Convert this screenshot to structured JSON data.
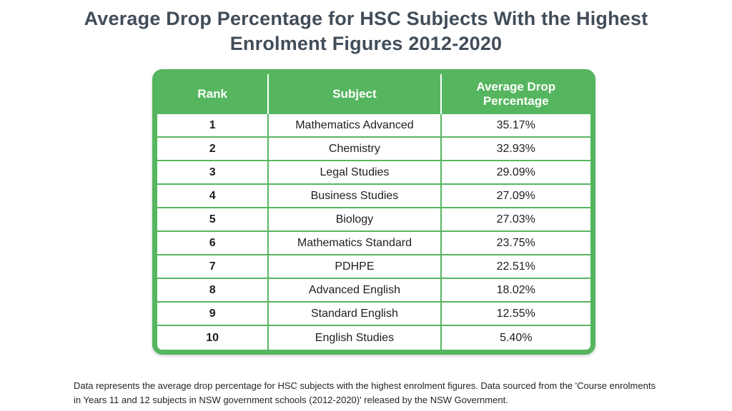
{
  "title": {
    "line1": "Average Drop Percentage for HSC Subjects With the Highest",
    "line2": "Enrolment Figures 2012-2020"
  },
  "chart_data": {
    "type": "table",
    "title": "Average Drop Percentage for HSC Subjects With the Highest Enrolment Figures 2012-2020",
    "columns": [
      "Rank",
      "Subject",
      "Average Drop Percentage"
    ],
    "rows": [
      {
        "rank": "1",
        "subject": "Mathematics Advanced",
        "drop": "35.17%"
      },
      {
        "rank": "2",
        "subject": "Chemistry",
        "drop": "32.93%"
      },
      {
        "rank": "3",
        "subject": "Legal Studies",
        "drop": "29.09%"
      },
      {
        "rank": "4",
        "subject": "Business Studies",
        "drop": "27.09%"
      },
      {
        "rank": "5",
        "subject": "Biology",
        "drop": "27.03%"
      },
      {
        "rank": "6",
        "subject": "Mathematics Standard",
        "drop": "23.75%"
      },
      {
        "rank": "7",
        "subject": "PDHPE",
        "drop": "22.51%"
      },
      {
        "rank": "8",
        "subject": "Advanced English",
        "drop": "18.02%"
      },
      {
        "rank": "9",
        "subject": "Standard English",
        "drop": "12.55%"
      },
      {
        "rank": "10",
        "subject": "English Studies",
        "drop": "5.40%"
      }
    ],
    "values_pct": [
      35.17,
      32.93,
      29.09,
      27.09,
      27.03,
      23.75,
      22.51,
      18.02,
      12.55,
      5.4
    ]
  },
  "footnote": "Data represents the average drop percentage for HSC subjects with the highest enrolment figures. Data sourced from the 'Course enrolments in Years 11 and 12 subjects in NSW government schools (2012-2020)' released by the NSW Government.",
  "colors": {
    "accent_green": "#56b65f",
    "title_slate": "#414d59",
    "body_text": "#1b1e22",
    "header_text": "#ffffff",
    "background": "#ffffff"
  }
}
